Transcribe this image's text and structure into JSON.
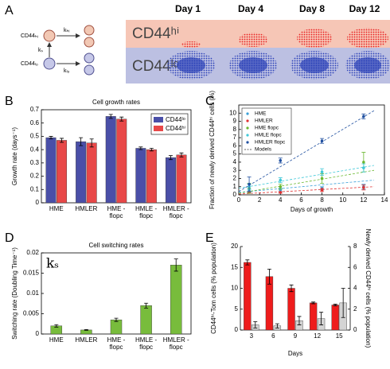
{
  "panel_labels": [
    "A",
    "B",
    "C",
    "D",
    "E"
  ],
  "diagram": {
    "cell_labels": [
      "CD44ₕᵢ",
      "CD44ₗₒ"
    ],
    "rates": [
      "kₕᵢ",
      "kₛ",
      "kₗₒ"
    ],
    "days": [
      "Day 1",
      "Day 4",
      "Day 8",
      "Day 12"
    ],
    "populations": [
      "CD44ʰⁱ",
      "CD44ˡᵒ"
    ]
  },
  "chart_data": [
    {
      "type": "bar",
      "title": "Cell growth rates",
      "y_label": "Growth rate (days⁻¹)",
      "categories": [
        "HME",
        "HMLER",
        "HME -flopc",
        "HMLE -flopc",
        "HMLER -flopc"
      ],
      "series": [
        {
          "name": "CD44ˡᵒ",
          "color": "#4a4fa8",
          "values": [
            0.49,
            0.46,
            0.65,
            0.41,
            0.34
          ],
          "errors": [
            0.01,
            0.03,
            0.015,
            0.01,
            0.015
          ]
        },
        {
          "name": "CD44ʰⁱ",
          "color": "#e84848",
          "values": [
            0.47,
            0.45,
            0.63,
            0.4,
            0.36
          ],
          "errors": [
            0.015,
            0.03,
            0.015,
            0.01,
            0.015
          ]
        }
      ],
      "ylim": [
        0,
        0.7
      ],
      "yticks": [
        0,
        0.1,
        0.2,
        0.3,
        0.4,
        0.5,
        0.6,
        0.7
      ],
      "legend": "upper right"
    },
    {
      "type": "line",
      "x_label": "Days of growth",
      "y_label": "Fraction of newly derived CD44ʰⁱ cells (%)",
      "x": [
        1,
        4,
        8,
        12
      ],
      "series": [
        {
          "name": "HME",
          "color": "#3aa0d8",
          "values": [
            0.5,
            0.6,
            0.8,
            1.0
          ],
          "errors": [
            0.2,
            0.2,
            0.2,
            0.3
          ]
        },
        {
          "name": "HMLER",
          "color": "#e03030",
          "values": [
            0.3,
            0.3,
            0.6,
            0.9
          ],
          "errors": [
            0.1,
            0.1,
            0.2,
            0.3
          ]
        },
        {
          "name": "HME flopc",
          "color": "#6ab830",
          "values": [
            0.8,
            1.0,
            2.0,
            4.0
          ],
          "errors": [
            0.6,
            0.3,
            0.6,
            1.2
          ]
        },
        {
          "name": "HMLE flopc",
          "color": "#40c8d8",
          "values": [
            1.0,
            1.8,
            2.8,
            3.3
          ],
          "errors": [
            0.3,
            0.3,
            0.4,
            0.5
          ]
        },
        {
          "name": "HMLER flopc",
          "color": "#2050a0",
          "values": [
            1.3,
            4.2,
            6.6,
            9.6
          ],
          "errors": [
            0.9,
            0.3,
            0.3,
            0.3
          ]
        }
      ],
      "model_x": [
        0,
        13
      ],
      "models": {
        "name": "Models",
        "lines": [
          {
            "color": "#3aa0d8",
            "values": [
              0.3,
              1.8
            ]
          },
          {
            "color": "#e03030",
            "values": [
              0.1,
              1.0
            ]
          },
          {
            "color": "#6ab830",
            "values": [
              0.2,
              3.0
            ]
          },
          {
            "color": "#40c8d8",
            "values": [
              0.8,
              3.6
            ]
          },
          {
            "color": "#2050a0",
            "values": [
              0.4,
              10.3
            ]
          }
        ]
      },
      "xlim": [
        0,
        14
      ],
      "xticks": [
        0,
        2,
        4,
        6,
        8,
        10,
        12,
        14
      ],
      "ylim": [
        0,
        11
      ],
      "yticks": [
        0,
        1,
        2,
        3,
        4,
        5,
        6,
        7,
        8,
        9,
        10
      ],
      "legend": "upper left"
    },
    {
      "type": "bar",
      "title": "Cell switching rates",
      "y_label": "Switching rate (Doubling Time⁻¹)",
      "annotation": "kₛ",
      "categories": [
        "HME",
        "HMLER",
        "HME -flopc",
        "HMLE -flopc",
        "HMLER -flopc"
      ],
      "values": [
        0.002,
        0.001,
        0.0035,
        0.007,
        0.017
      ],
      "errors": [
        0.0003,
        0.0001,
        0.0004,
        0.0006,
        0.0015
      ],
      "color": "#78bc3c",
      "ylim": [
        0,
        0.02
      ],
      "yticks": [
        0,
        0.005,
        0.01,
        0.015,
        0.02
      ]
    },
    {
      "type": "bar",
      "x_label": "Days",
      "y_label": "CD44ʰⁱ-Tom cells (% population)",
      "y2_label": "Newly derived CD44ʰⁱ cells (% population)",
      "categories": [
        "3",
        "6",
        "9",
        "12",
        "15"
      ],
      "series": [
        {
          "color": "#ee1c1c",
          "values": [
            16.2,
            12.8,
            10,
            6.5,
            6
          ],
          "errors": [
            0.6,
            1.8,
            0.8,
            0.2,
            0.2
          ]
        },
        {
          "color": "#d4d4d4",
          "values": [
            0.5,
            0.4,
            0.9,
            1.1,
            2.6
          ],
          "errors": [
            0.3,
            0.2,
            0.4,
            0.6,
            1.4
          ],
          "axis": "y2"
        }
      ],
      "ylim": [
        0,
        20
      ],
      "yticks": [
        0,
        5,
        10,
        15,
        20
      ],
      "y2lim": [
        0,
        8
      ],
      "y2ticks": [
        0,
        2,
        4,
        6,
        8
      ]
    }
  ]
}
